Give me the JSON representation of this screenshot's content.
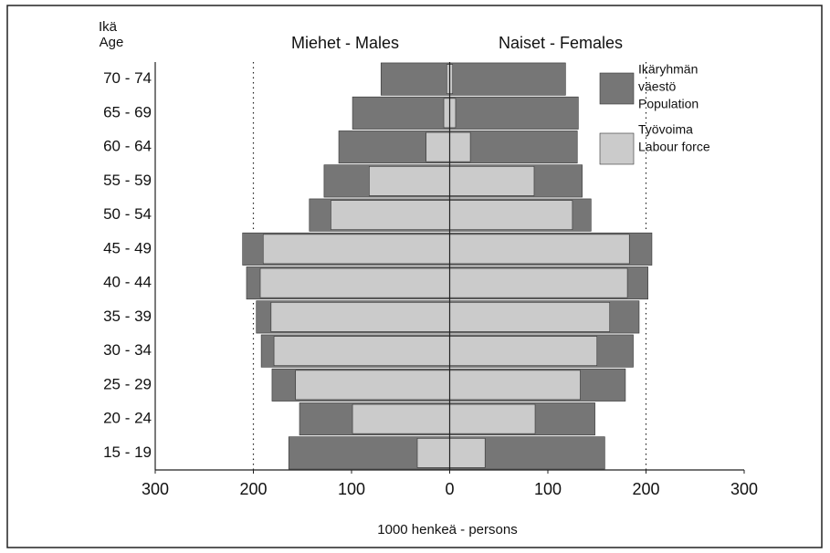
{
  "chart_data": {
    "type": "population-pyramid",
    "y_label_lines": [
      "Ikä",
      "Age"
    ],
    "left_header": "Miehet - Males",
    "right_header": "Naiset - Females",
    "xlabel": "1000  henkeä - persons",
    "categories": [
      "70 - 74",
      "65 - 69",
      "60 - 64",
      "55 - 59",
      "50 - 54",
      "45 - 49",
      "40 - 44",
      "35 - 39",
      "30 - 34",
      "25 - 29",
      "20 - 24",
      "15 - 19"
    ],
    "series": [
      {
        "side": "left",
        "kind": "population",
        "color": "#767676",
        "values": [
          70,
          99,
          113,
          128,
          143,
          211,
          207,
          197,
          192,
          181,
          153,
          164
        ]
      },
      {
        "side": "left",
        "kind": "labour",
        "color": "#cbcbcb",
        "values": [
          3,
          6,
          24,
          82,
          121,
          190,
          193,
          182,
          179,
          157,
          99,
          33
        ]
      },
      {
        "side": "right",
        "kind": "population",
        "color": "#767676",
        "values": [
          118,
          131,
          130,
          135,
          144,
          206,
          202,
          193,
          187,
          179,
          148,
          158
        ]
      },
      {
        "side": "right",
        "kind": "labour",
        "color": "#cbcbcb",
        "values": [
          3,
          6,
          21,
          86,
          125,
          183,
          181,
          163,
          150,
          133,
          87,
          36
        ]
      }
    ],
    "legend": [
      {
        "lines": [
          "Ikäryhmän",
          "väestö",
          "Population"
        ],
        "color": "#767676"
      },
      {
        "lines": [
          "Työvoima",
          "Labour force"
        ],
        "color": "#cbcbcb"
      }
    ],
    "xlim": [
      -300,
      300
    ],
    "xticks": [
      {
        "value": -300,
        "label": "300"
      },
      {
        "value": -200,
        "label": "200"
      },
      {
        "value": -100,
        "label": "100"
      },
      0,
      100,
      200,
      300
    ],
    "grid_values": [
      -200,
      200
    ]
  }
}
